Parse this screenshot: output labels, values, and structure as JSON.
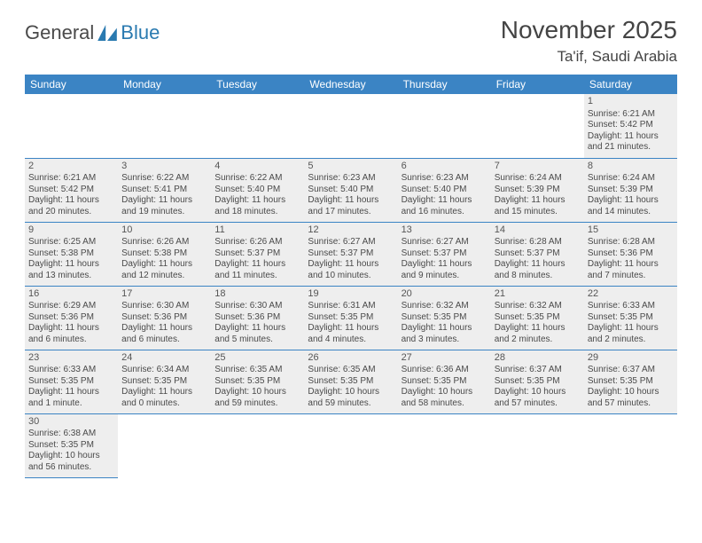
{
  "logo": {
    "text1": "General",
    "text2": "Blue"
  },
  "title": "November 2025",
  "location": "Ta'if, Saudi Arabia",
  "colors": {
    "header_bg": "#3b84c4",
    "header_text": "#ffffff",
    "cell_bg": "#eeeeee",
    "border": "#3b84c4",
    "text": "#4a4a4a",
    "logo_blue": "#2a7ab0"
  },
  "weekdays": [
    "Sunday",
    "Monday",
    "Tuesday",
    "Wednesday",
    "Thursday",
    "Friday",
    "Saturday"
  ],
  "weeks": [
    [
      null,
      null,
      null,
      null,
      null,
      null,
      {
        "n": "1",
        "sr": "Sunrise: 6:21 AM",
        "ss": "Sunset: 5:42 PM",
        "dl": "Daylight: 11 hours and 21 minutes."
      }
    ],
    [
      {
        "n": "2",
        "sr": "Sunrise: 6:21 AM",
        "ss": "Sunset: 5:42 PM",
        "dl": "Daylight: 11 hours and 20 minutes."
      },
      {
        "n": "3",
        "sr": "Sunrise: 6:22 AM",
        "ss": "Sunset: 5:41 PM",
        "dl": "Daylight: 11 hours and 19 minutes."
      },
      {
        "n": "4",
        "sr": "Sunrise: 6:22 AM",
        "ss": "Sunset: 5:40 PM",
        "dl": "Daylight: 11 hours and 18 minutes."
      },
      {
        "n": "5",
        "sr": "Sunrise: 6:23 AM",
        "ss": "Sunset: 5:40 PM",
        "dl": "Daylight: 11 hours and 17 minutes."
      },
      {
        "n": "6",
        "sr": "Sunrise: 6:23 AM",
        "ss": "Sunset: 5:40 PM",
        "dl": "Daylight: 11 hours and 16 minutes."
      },
      {
        "n": "7",
        "sr": "Sunrise: 6:24 AM",
        "ss": "Sunset: 5:39 PM",
        "dl": "Daylight: 11 hours and 15 minutes."
      },
      {
        "n": "8",
        "sr": "Sunrise: 6:24 AM",
        "ss": "Sunset: 5:39 PM",
        "dl": "Daylight: 11 hours and 14 minutes."
      }
    ],
    [
      {
        "n": "9",
        "sr": "Sunrise: 6:25 AM",
        "ss": "Sunset: 5:38 PM",
        "dl": "Daylight: 11 hours and 13 minutes."
      },
      {
        "n": "10",
        "sr": "Sunrise: 6:26 AM",
        "ss": "Sunset: 5:38 PM",
        "dl": "Daylight: 11 hours and 12 minutes."
      },
      {
        "n": "11",
        "sr": "Sunrise: 6:26 AM",
        "ss": "Sunset: 5:37 PM",
        "dl": "Daylight: 11 hours and 11 minutes."
      },
      {
        "n": "12",
        "sr": "Sunrise: 6:27 AM",
        "ss": "Sunset: 5:37 PM",
        "dl": "Daylight: 11 hours and 10 minutes."
      },
      {
        "n": "13",
        "sr": "Sunrise: 6:27 AM",
        "ss": "Sunset: 5:37 PM",
        "dl": "Daylight: 11 hours and 9 minutes."
      },
      {
        "n": "14",
        "sr": "Sunrise: 6:28 AM",
        "ss": "Sunset: 5:37 PM",
        "dl": "Daylight: 11 hours and 8 minutes."
      },
      {
        "n": "15",
        "sr": "Sunrise: 6:28 AM",
        "ss": "Sunset: 5:36 PM",
        "dl": "Daylight: 11 hours and 7 minutes."
      }
    ],
    [
      {
        "n": "16",
        "sr": "Sunrise: 6:29 AM",
        "ss": "Sunset: 5:36 PM",
        "dl": "Daylight: 11 hours and 6 minutes."
      },
      {
        "n": "17",
        "sr": "Sunrise: 6:30 AM",
        "ss": "Sunset: 5:36 PM",
        "dl": "Daylight: 11 hours and 6 minutes."
      },
      {
        "n": "18",
        "sr": "Sunrise: 6:30 AM",
        "ss": "Sunset: 5:36 PM",
        "dl": "Daylight: 11 hours and 5 minutes."
      },
      {
        "n": "19",
        "sr": "Sunrise: 6:31 AM",
        "ss": "Sunset: 5:35 PM",
        "dl": "Daylight: 11 hours and 4 minutes."
      },
      {
        "n": "20",
        "sr": "Sunrise: 6:32 AM",
        "ss": "Sunset: 5:35 PM",
        "dl": "Daylight: 11 hours and 3 minutes."
      },
      {
        "n": "21",
        "sr": "Sunrise: 6:32 AM",
        "ss": "Sunset: 5:35 PM",
        "dl": "Daylight: 11 hours and 2 minutes."
      },
      {
        "n": "22",
        "sr": "Sunrise: 6:33 AM",
        "ss": "Sunset: 5:35 PM",
        "dl": "Daylight: 11 hours and 2 minutes."
      }
    ],
    [
      {
        "n": "23",
        "sr": "Sunrise: 6:33 AM",
        "ss": "Sunset: 5:35 PM",
        "dl": "Daylight: 11 hours and 1 minute."
      },
      {
        "n": "24",
        "sr": "Sunrise: 6:34 AM",
        "ss": "Sunset: 5:35 PM",
        "dl": "Daylight: 11 hours and 0 minutes."
      },
      {
        "n": "25",
        "sr": "Sunrise: 6:35 AM",
        "ss": "Sunset: 5:35 PM",
        "dl": "Daylight: 10 hours and 59 minutes."
      },
      {
        "n": "26",
        "sr": "Sunrise: 6:35 AM",
        "ss": "Sunset: 5:35 PM",
        "dl": "Daylight: 10 hours and 59 minutes."
      },
      {
        "n": "27",
        "sr": "Sunrise: 6:36 AM",
        "ss": "Sunset: 5:35 PM",
        "dl": "Daylight: 10 hours and 58 minutes."
      },
      {
        "n": "28",
        "sr": "Sunrise: 6:37 AM",
        "ss": "Sunset: 5:35 PM",
        "dl": "Daylight: 10 hours and 57 minutes."
      },
      {
        "n": "29",
        "sr": "Sunrise: 6:37 AM",
        "ss": "Sunset: 5:35 PM",
        "dl": "Daylight: 10 hours and 57 minutes."
      }
    ],
    [
      {
        "n": "30",
        "sr": "Sunrise: 6:38 AM",
        "ss": "Sunset: 5:35 PM",
        "dl": "Daylight: 10 hours and 56 minutes."
      },
      null,
      null,
      null,
      null,
      null,
      null
    ]
  ]
}
